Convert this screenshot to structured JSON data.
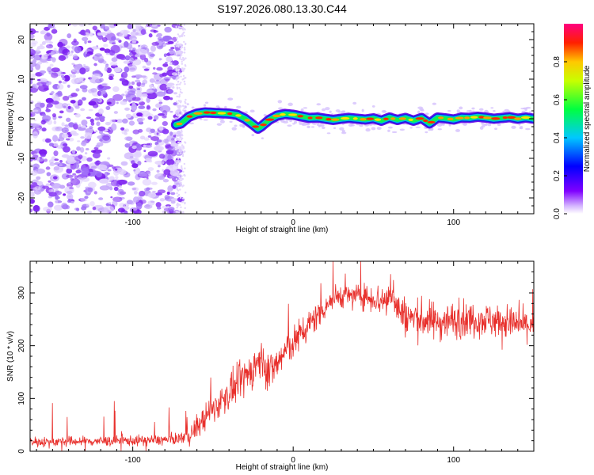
{
  "title": "S197.2026.080.13.30.C44",
  "chart_data": [
    {
      "type": "heatmap",
      "name": "spectrogram",
      "xlabel": "Height of straight line (km)",
      "ylabel": "Frequency (Hz)",
      "xlim": [
        -164,
        150
      ],
      "ylim": [
        -24,
        24
      ],
      "xticks": [
        -100,
        0,
        100
      ],
      "yticks": [
        -20,
        -10,
        0,
        10,
        20
      ],
      "noise_region_x": [
        -164,
        -73
      ],
      "ridge": {
        "x": [
          -73,
          -70,
          -65,
          -60,
          -55,
          -50,
          -45,
          -40,
          -35,
          -30,
          -25,
          -22,
          -20,
          -15,
          -10,
          -5,
          0,
          5,
          10,
          15,
          20,
          25,
          30,
          35,
          40,
          45,
          50,
          55,
          60,
          65,
          70,
          75,
          80,
          85,
          90,
          95,
          100,
          105,
          110,
          115,
          120,
          125,
          130,
          135,
          140,
          145,
          150
        ],
        "freq": [
          -1.5,
          -1.2,
          0.5,
          1.3,
          1.6,
          1.5,
          1.4,
          1.3,
          1.0,
          0.0,
          -1.5,
          -2.5,
          -2.0,
          -0.3,
          0.8,
          1.2,
          1.0,
          0.6,
          0.2,
          0.3,
          0.0,
          -0.3,
          0.0,
          0.2,
          0.0,
          -0.2,
          0.1,
          -0.5,
          0.3,
          -0.3,
          0.2,
          -0.5,
          0.2,
          -1.2,
          0.3,
          0.1,
          -0.2,
          0.3,
          0.2,
          0.5,
          0.3,
          0.0,
          0.2,
          0.4,
          0.0,
          0.3,
          0.0
        ]
      },
      "colorbar": {
        "label": "Normalized spectral amplitude",
        "range": [
          0,
          1
        ],
        "ticks": [
          "0.0",
          "0.2",
          "0.4",
          "0.6",
          "0.8"
        ]
      }
    },
    {
      "type": "line",
      "name": "snr",
      "xlabel": "Height of straight line (km)",
      "ylabel": "SNR (10 * v/v)",
      "xlim": [
        -164,
        150
      ],
      "ylim": [
        0,
        360
      ],
      "xticks": [
        -100,
        0,
        100
      ],
      "yticks": [
        0,
        100,
        200,
        300
      ],
      "color": "#e8302c",
      "trend": {
        "x": [
          -164,
          -150,
          -100,
          -75,
          -65,
          -60,
          -50,
          -40,
          -30,
          -20,
          -15,
          -10,
          -5,
          0,
          10,
          20,
          25,
          30,
          40,
          50,
          55,
          60,
          62,
          65,
          70,
          80,
          90,
          100,
          110,
          120,
          130,
          140,
          150
        ],
        "snr": [
          18,
          18,
          20,
          22,
          30,
          45,
          80,
          110,
          140,
          175,
          150,
          165,
          190,
          205,
          240,
          275,
          290,
          295,
          295,
          290,
          285,
          290,
          310,
          270,
          255,
          250,
          245,
          248,
          250,
          250,
          245,
          240,
          240
        ]
      },
      "noise_amplitude": {
        "x": [
          -164,
          -70,
          -60,
          -20,
          0,
          40,
          60,
          80,
          150
        ],
        "amp": [
          7,
          8,
          18,
          30,
          25,
          15,
          28,
          28,
          22
        ]
      }
    }
  ]
}
